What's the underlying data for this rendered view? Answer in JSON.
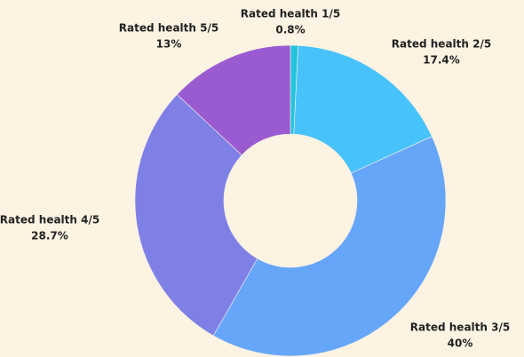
{
  "chart_data": {
    "type": "donut",
    "categories": [
      "Rated health 1/5",
      "Rated health 2/5",
      "Rated health 3/5",
      "Rated health 4/5",
      "Rated health 5/5"
    ],
    "values": [
      0.8,
      17.4,
      40,
      28.7,
      13
    ],
    "value_labels": [
      "0.8%",
      "17.4%",
      "40%",
      "28.7%",
      "13%"
    ],
    "colors": [
      "#22c4dc",
      "#48c2fb",
      "#66a6f9",
      "#7f80e6",
      "#9a5bd0"
    ]
  }
}
